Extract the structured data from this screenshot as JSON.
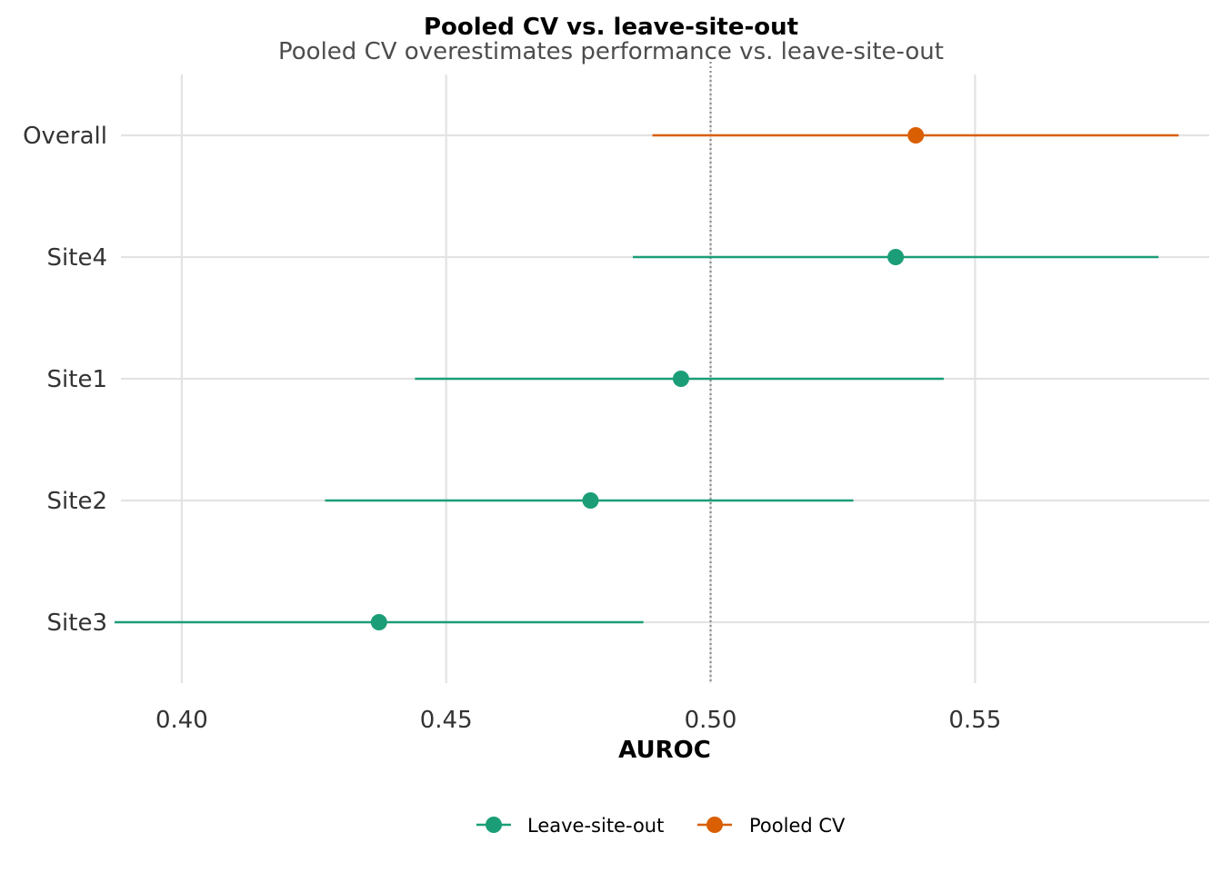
{
  "chart_data": {
    "type": "forest",
    "title": "Pooled CV vs. leave-site-out",
    "subtitle": "Pooled CV overestimates performance vs. leave-site-out",
    "xlabel": "AUROC",
    "ylabel": "",
    "xlim": [
      0.3885,
      0.5943
    ],
    "x_ticks": [
      0.4,
      0.45,
      0.5,
      0.55
    ],
    "x_tick_labels": [
      "0.40",
      "0.45",
      "0.50",
      "0.55"
    ],
    "reference_line": 0.5,
    "grid": true,
    "categories": [
      "Overall",
      "Site4",
      "Site1",
      "Site2",
      "Site3"
    ],
    "series": [
      {
        "name": "Leave-site-out",
        "color": "#1b9e77",
        "points": [
          {
            "category": "Site4",
            "value": 0.535,
            "lower": 0.4853,
            "upper": 0.5847
          },
          {
            "category": "Site1",
            "value": 0.4944,
            "lower": 0.4441,
            "upper": 0.5441
          },
          {
            "category": "Site2",
            "value": 0.4773,
            "lower": 0.4271,
            "upper": 0.527
          },
          {
            "category": "Site3",
            "value": 0.4373,
            "lower": 0.3873,
            "upper": 0.4873
          }
        ]
      },
      {
        "name": "Pooled CV",
        "color": "#d95f02",
        "points": [
          {
            "category": "Overall",
            "value": 0.5388,
            "lower": 0.489,
            "upper": 0.5885
          }
        ]
      }
    ],
    "legend_position": "bottom"
  }
}
